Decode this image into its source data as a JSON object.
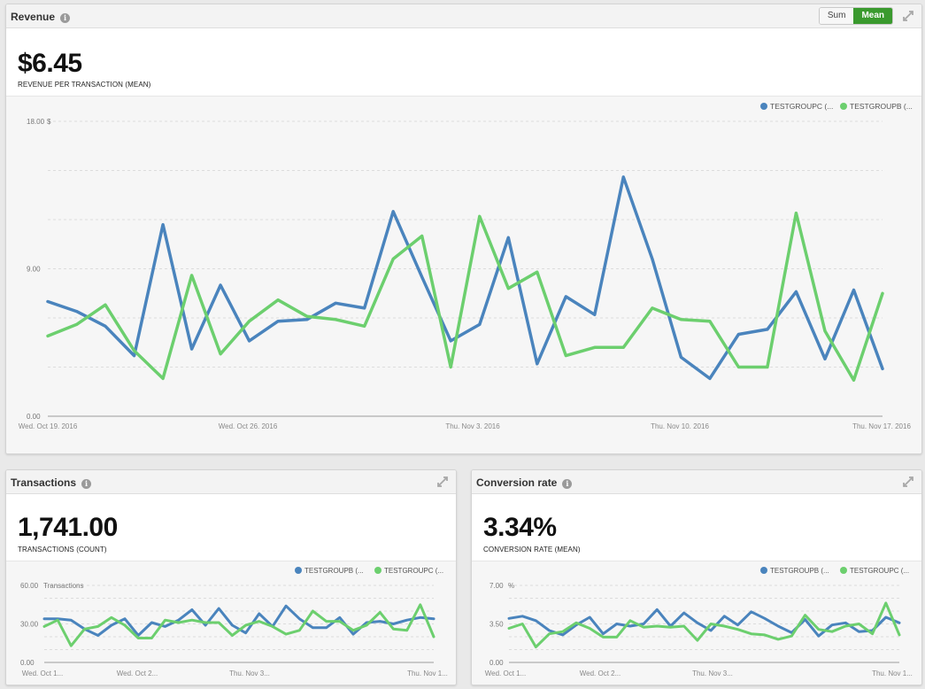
{
  "panels": {
    "revenue": {
      "title": "Revenue",
      "toggle": {
        "sum": "Sum",
        "mean": "Mean"
      },
      "kpi_value": "$6.45",
      "kpi_label": "REVENUE PER TRANSACTION (MEAN)"
    },
    "transactions": {
      "title": "Transactions",
      "kpi_value": "1,741.00",
      "kpi_label": "TRANSACTIONS (COUNT)"
    },
    "conversion": {
      "title": "Conversion rate",
      "kpi_value": "3.34%",
      "kpi_label": "CONVERSION RATE (MEAN)"
    }
  },
  "colors": {
    "blue": "#4a84bd",
    "green": "#6ccf6e"
  },
  "chart_data": [
    {
      "type": "line",
      "ylabel": "$",
      "ylim": [
        0,
        18
      ],
      "yticks": [
        "0.00",
        "9.00",
        "18.00"
      ],
      "xticks": [
        "Wed. Oct 19. 2016",
        "Wed. Oct 26. 2016",
        "Thu. Nov 3. 2016",
        "Thu. Nov 10. 2016",
        "Thu. Nov 17. 2016"
      ],
      "legend_position": "top-right",
      "series": [
        {
          "name": "TESTGROUPC (...",
          "color": "#4a84bd",
          "values": [
            7.0,
            6.4,
            5.5,
            3.7,
            11.7,
            4.1,
            8.0,
            4.6,
            5.8,
            5.9,
            6.9,
            6.6,
            12.5,
            8.5,
            4.6,
            5.6,
            10.9,
            3.2,
            7.3,
            6.2,
            14.6,
            9.6,
            3.6,
            2.3,
            5.0,
            5.3,
            7.6,
            3.5,
            7.7,
            2.9
          ],
          "dash": []
        },
        {
          "name": "TESTGROUPB (...",
          "color": "#6ccf6e",
          "values": [
            4.9,
            5.6,
            6.8,
            4.0,
            2.3,
            8.6,
            3.8,
            5.8,
            7.1,
            6.1,
            5.9,
            5.5,
            9.6,
            11.0,
            3.0,
            12.2,
            7.8,
            8.8,
            3.7,
            4.2,
            4.2,
            6.6,
            5.9,
            5.8,
            3.0,
            3.0,
            12.4,
            5.2,
            2.2,
            7.5
          ]
        }
      ]
    },
    {
      "type": "line",
      "ylabel": "Transactions",
      "ylim": [
        0,
        60
      ],
      "yticks": [
        "0.00",
        "30.00",
        "60.00"
      ],
      "xticks": [
        "Wed. Oct 1...",
        "Wed. Oct 2...",
        "Thu. Nov 3...",
        "Thu. Nov 1..."
      ],
      "legend_position": "top-right",
      "series": [
        {
          "name": "TESTGROUPB (...",
          "color": "#4a84bd",
          "values": [
            34,
            34,
            33,
            26,
            21,
            29,
            34,
            21,
            31,
            28,
            33,
            41,
            29,
            42,
            29,
            23,
            38,
            28,
            44,
            34,
            27,
            27,
            35,
            22,
            31,
            32,
            30,
            33,
            35,
            34
          ]
        },
        {
          "name": "TESTGROUPC (...",
          "color": "#6ccf6e",
          "values": [
            28,
            33,
            13,
            26,
            28,
            35,
            29,
            19,
            19,
            33,
            31,
            33,
            31,
            31,
            21,
            29,
            32,
            28,
            22,
            25,
            40,
            32,
            32,
            25,
            29,
            39,
            26,
            25,
            45,
            20
          ]
        }
      ]
    },
    {
      "type": "line",
      "ylabel": "%",
      "ylim": [
        0,
        7
      ],
      "yticks": [
        "0.00",
        "3.50",
        "7.00"
      ],
      "xticks": [
        "Wed. Oct 1...",
        "Wed. Oct 2...",
        "Thu. Nov 3...",
        "Thu. Nov 1..."
      ],
      "legend_position": "top-right",
      "series": [
        {
          "name": "TESTGROUPB (...",
          "color": "#4a84bd",
          "values": [
            4.0,
            4.2,
            3.8,
            2.9,
            2.5,
            3.4,
            4.1,
            2.6,
            3.5,
            3.3,
            3.5,
            4.8,
            3.3,
            4.5,
            3.6,
            2.9,
            4.2,
            3.4,
            4.6,
            4.0,
            3.3,
            2.7,
            3.9,
            2.4,
            3.4,
            3.6,
            2.8,
            2.9,
            4.1,
            3.6
          ]
        },
        {
          "name": "TESTGROUPC (...",
          "color": "#6ccf6e",
          "values": [
            3.1,
            3.5,
            1.4,
            2.6,
            2.8,
            3.6,
            3.1,
            2.3,
            2.3,
            3.8,
            3.2,
            3.3,
            3.2,
            3.3,
            2.0,
            3.5,
            3.3,
            3.0,
            2.6,
            2.5,
            2.1,
            2.4,
            4.3,
            3.0,
            2.8,
            3.3,
            3.5,
            2.6,
            5.4,
            2.5
          ]
        }
      ]
    }
  ]
}
